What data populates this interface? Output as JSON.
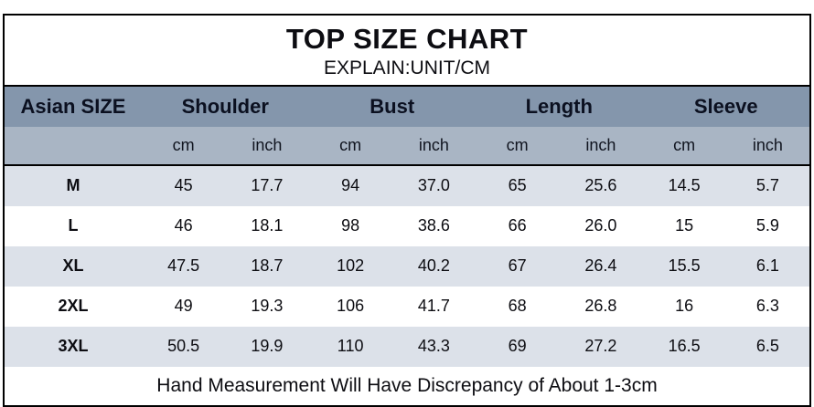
{
  "chart_data": {
    "type": "table",
    "title": "TOP SIZE CHART",
    "subtitle": "EXPLAIN:UNIT/CM",
    "corner_header": "Asian SIZE",
    "column_groups": [
      "Shoulder",
      "Bust",
      "Length",
      "Sleeve"
    ],
    "unit_headers": [
      "cm",
      "inch",
      "cm",
      "inch",
      "cm",
      "inch",
      "cm",
      "inch"
    ],
    "rows": [
      {
        "size": "M",
        "values": [
          "45",
          "17.7",
          "94",
          "37.0",
          "65",
          "25.6",
          "14.5",
          "5.7"
        ]
      },
      {
        "size": "L",
        "values": [
          "46",
          "18.1",
          "98",
          "38.6",
          "66",
          "26.0",
          "15",
          "5.9"
        ]
      },
      {
        "size": "XL",
        "values": [
          "47.5",
          "18.7",
          "102",
          "40.2",
          "67",
          "26.4",
          "15.5",
          "6.1"
        ]
      },
      {
        "size": "2XL",
        "values": [
          "49",
          "19.3",
          "106",
          "41.7",
          "68",
          "26.8",
          "16",
          "6.3"
        ]
      },
      {
        "size": "3XL",
        "values": [
          "50.5",
          "19.9",
          "110",
          "43.3",
          "69",
          "27.2",
          "16.5",
          "6.5"
        ]
      }
    ],
    "footer_note": "Hand Measurement Will Have Discrepancy of About 1-3cm",
    "colors": {
      "header_bg": "#8496ac",
      "unit_row_bg": "#a9b5c4",
      "alt_row_bg": "#dce1e9",
      "row_bg": "#ffffff",
      "border": "#000000",
      "text": "#0d0d12"
    }
  }
}
